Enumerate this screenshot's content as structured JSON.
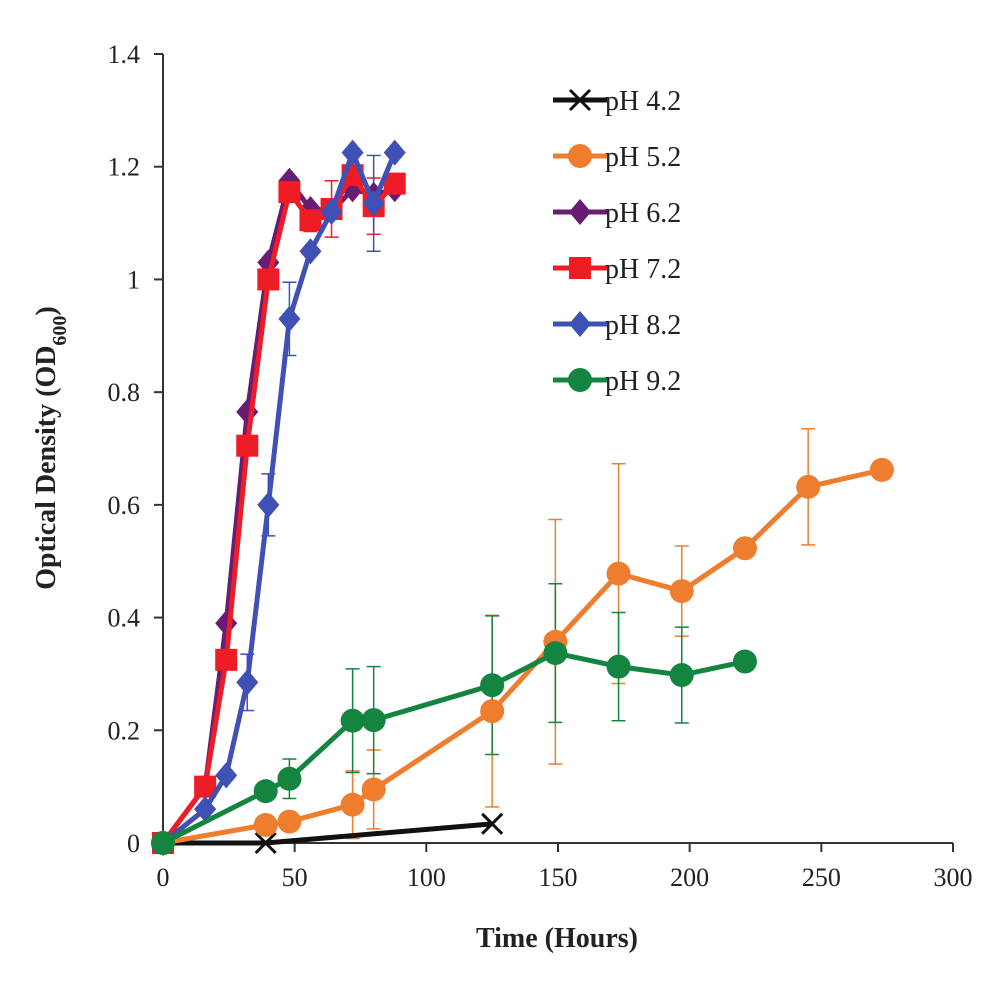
{
  "chart_data": {
    "type": "line",
    "title": "",
    "xlabel": "Time (Hours)",
    "ylabel": {
      "main": "Optical Density (OD",
      "sub": "600",
      "close": ")"
    },
    "xlim": [
      0,
      300
    ],
    "ylim": [
      0,
      1.4
    ],
    "xticks": [
      0,
      50,
      100,
      150,
      200,
      250,
      300
    ],
    "yticks": [
      0,
      0.2,
      0.4,
      0.6,
      0.8,
      1,
      1.2,
      1.4
    ],
    "xtick_labels": [
      "0",
      "50",
      "100",
      "150",
      "200",
      "250",
      "300"
    ],
    "ytick_labels": [
      "0",
      "0.2",
      "0.4",
      "0.6",
      "0.8",
      "1",
      "1.2",
      "1.4"
    ],
    "grid": false,
    "legend_position": "top-right",
    "series": [
      {
        "name": "pH 4.2",
        "color": "#111111",
        "marker": "x",
        "x": [
          0,
          39,
          125
        ],
        "y": [
          0,
          0,
          0.034
        ],
        "err": [
          0,
          0,
          0
        ]
      },
      {
        "name": "pH 5.2",
        "color": "#ee7d2d",
        "marker": "circle",
        "x": [
          0,
          39,
          48,
          72,
          80,
          125,
          149,
          173,
          197,
          221,
          245,
          273
        ],
        "y": [
          0,
          0.032,
          0.038,
          0.068,
          0.095,
          0.234,
          0.357,
          0.478,
          0.447,
          0.523,
          0.632,
          0.662
        ],
        "err": [
          0,
          0.005,
          0.005,
          0.06,
          0.07,
          0.17,
          0.217,
          0.195,
          0.08,
          0,
          0.103,
          0
        ]
      },
      {
        "name": "pH 6.2",
        "color": "#6a1c74",
        "marker": "diamond",
        "x": [
          0,
          16,
          24,
          32,
          40,
          48,
          56,
          64,
          72,
          80,
          88
        ],
        "y": [
          0,
          0.1,
          0.39,
          0.765,
          1.03,
          1.175,
          1.125,
          1.12,
          1.16,
          1.15,
          1.16
        ],
        "err": [
          0,
          0,
          0,
          0,
          0,
          0,
          0,
          0,
          0,
          0,
          0
        ]
      },
      {
        "name": "pH 7.2",
        "color": "#ee1c24",
        "marker": "square",
        "x": [
          0,
          16,
          24,
          32,
          40,
          48,
          56,
          64,
          72,
          80,
          88
        ],
        "y": [
          0,
          0.1,
          0.325,
          0.705,
          1.0,
          1.155,
          1.105,
          1.125,
          1.185,
          1.13,
          1.17
        ],
        "err": [
          0,
          0,
          0,
          0,
          0,
          0,
          0.02,
          0.05,
          0,
          0.05,
          0
        ]
      },
      {
        "name": "pH 8.2",
        "color": "#3f51b5",
        "marker": "diamond",
        "x": [
          0,
          16,
          24,
          32,
          40,
          48,
          56,
          64,
          72,
          80,
          88
        ],
        "y": [
          0,
          0.06,
          0.12,
          0.285,
          0.6,
          0.93,
          1.05,
          1.12,
          1.225,
          1.135,
          1.225
        ],
        "err": [
          0,
          0,
          0,
          0.05,
          0.055,
          0.065,
          0,
          0,
          0,
          0.085,
          0
        ]
      },
      {
        "name": "pH 9.2",
        "color": "#138541",
        "marker": "circle",
        "x": [
          0,
          39,
          48,
          72,
          80,
          125,
          149,
          173,
          197,
          221
        ],
        "y": [
          0,
          0.092,
          0.114,
          0.217,
          0.218,
          0.28,
          0.337,
          0.313,
          0.298,
          0.322
        ],
        "err": [
          0,
          0,
          0.035,
          0.092,
          0.095,
          0.123,
          0.123,
          0.096,
          0.085,
          0
        ]
      }
    ]
  }
}
